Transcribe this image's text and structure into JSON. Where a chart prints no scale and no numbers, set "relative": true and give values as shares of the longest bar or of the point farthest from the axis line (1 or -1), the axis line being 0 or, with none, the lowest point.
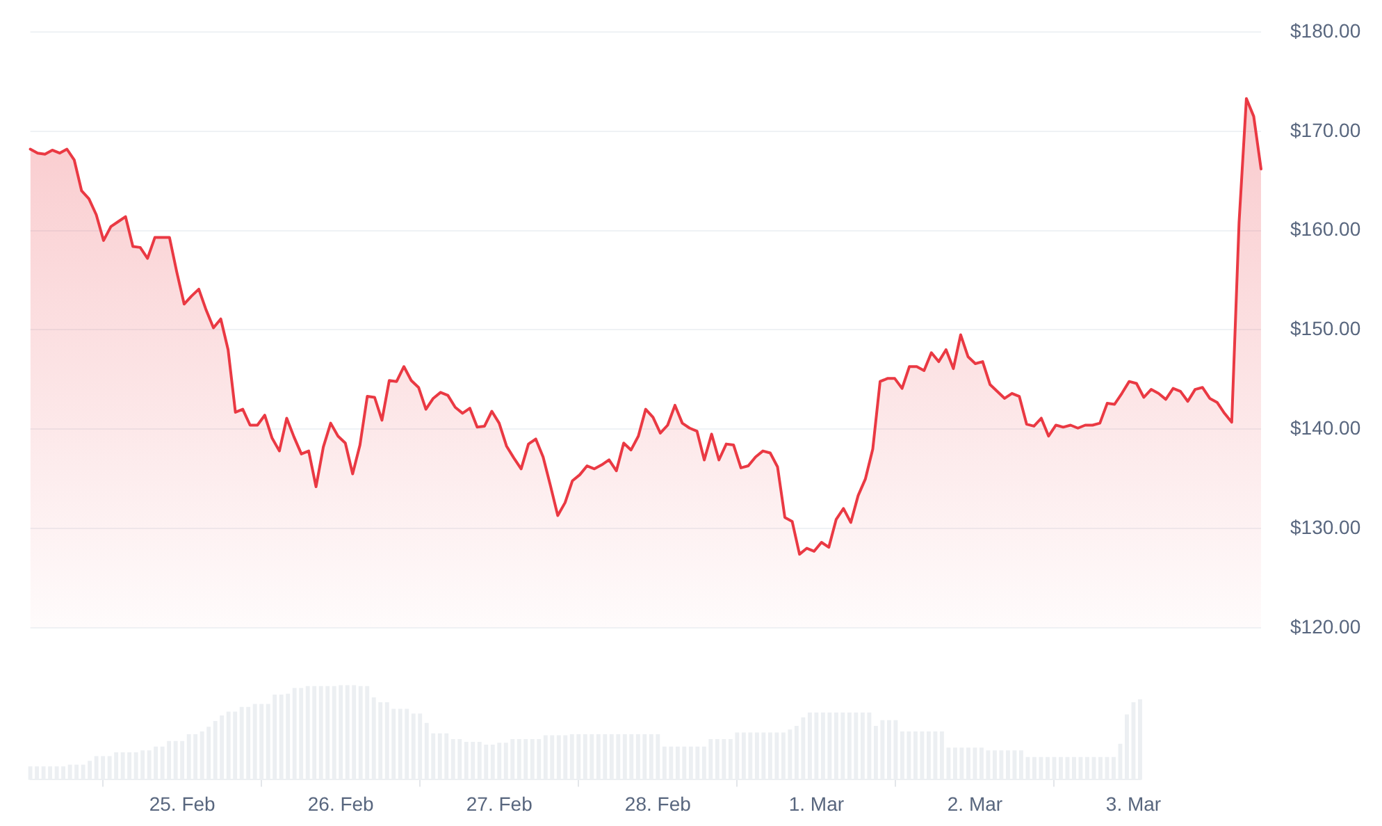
{
  "chart_data": [
    {
      "type": "area",
      "color": "#ea3943",
      "grid": "y",
      "tick_labels": "y",
      "ylim": [
        120,
        180
      ],
      "yticks": [
        {
          "value": 120,
          "label": "$120.00"
        },
        {
          "value": 130,
          "label": "$130.00"
        },
        {
          "value": 140,
          "label": "$140.00"
        },
        {
          "value": 150,
          "label": "$150.00"
        },
        {
          "value": 160,
          "label": "$160.00"
        },
        {
          "value": 170,
          "label": "$170.00"
        },
        {
          "value": 180,
          "label": "$180.00"
        }
      ],
      "categories": [
        null,
        null,
        null,
        null,
        null,
        null,
        null,
        null,
        null,
        null,
        null,
        null,
        null,
        null,
        null,
        null,
        null,
        null,
        null,
        null,
        null,
        null,
        null,
        null,
        null,
        null,
        null,
        null,
        null,
        null,
        null,
        null,
        null,
        null,
        null,
        null,
        null,
        null,
        null,
        null,
        null,
        null,
        null,
        null,
        null,
        null,
        null,
        null,
        null,
        null,
        null,
        null,
        null,
        null,
        null,
        null,
        null,
        null,
        null,
        null,
        null,
        null,
        null,
        null,
        null,
        null,
        null,
        null,
        null,
        null,
        null,
        null,
        null,
        null,
        null,
        null,
        null,
        null,
        null,
        null,
        null,
        null,
        null,
        null,
        null,
        null,
        null,
        null,
        null,
        null,
        null,
        null,
        null,
        null,
        null,
        null,
        null,
        null,
        null,
        null,
        null,
        null,
        null,
        null,
        null,
        null,
        null,
        null,
        null,
        null,
        null,
        null,
        null,
        null,
        null,
        null,
        null,
        null,
        null,
        null,
        null,
        null,
        null,
        null,
        null,
        null,
        null,
        null,
        null,
        null,
        null,
        null,
        null,
        null,
        null,
        null,
        null,
        null,
        null,
        null,
        null,
        null,
        null,
        null,
        null,
        null,
        null,
        null,
        null,
        null,
        null,
        null,
        null,
        null,
        null,
        null,
        null,
        null,
        null,
        null,
        null,
        null,
        null,
        null,
        null,
        null,
        null,
        null,
        null
      ],
      "values": [
        168.2,
        167.8,
        167.7,
        168.1,
        167.8,
        168.2,
        167.1,
        164,
        163.2,
        161.6,
        159,
        160.4,
        160.9,
        161.4,
        158.4,
        158.3,
        157.2,
        159.3,
        159.3,
        159.3,
        155.8,
        152.6,
        153.4,
        154.1,
        152,
        150.2,
        151.1,
        148,
        141.7,
        142,
        140.4,
        140.4,
        141.4,
        139.1,
        137.8,
        141.1,
        139.2,
        137.5,
        137.8,
        134.2,
        138.2,
        140.6,
        139.3,
        138.6,
        135.5,
        138.4,
        143.3,
        143.2,
        140.9,
        144.9,
        144.8,
        146.3,
        144.9,
        144.2,
        142,
        143.1,
        143.7,
        143.4,
        142.2,
        141.6,
        142.1,
        140.2,
        140.3,
        141.8,
        140.6,
        138.3,
        137.1,
        136,
        138.5,
        139,
        137.2,
        134.3,
        131.3,
        132.6,
        134.8,
        135.4,
        136.3,
        136,
        136.4,
        136.9,
        135.8,
        138.6,
        137.9,
        139.3,
        142,
        141.2,
        139.6,
        140.4,
        142.4,
        140.6,
        140.1,
        139.8,
        136.9,
        139.5,
        136.9,
        138.5,
        138.4,
        136.1,
        136.3,
        137.2,
        137.8,
        137.6,
        136.2,
        131.1,
        130.7,
        127.4,
        128,
        127.7,
        128.6,
        128.1,
        130.9,
        132,
        130.6,
        133.3,
        135,
        138,
        144.8,
        145.1,
        145.1,
        144.1,
        146.3,
        146.3,
        145.9,
        147.7,
        146.8,
        148,
        146.1,
        149.5,
        147.3,
        146.6,
        146.8,
        144.5,
        143.8,
        143.1,
        143.6,
        143.3,
        140.5,
        140.3,
        141.1,
        139.3,
        140.4,
        140.2,
        140.4,
        140.1,
        140.4,
        140.4,
        140.6,
        142.6,
        142.5,
        143.6,
        144.8,
        144.6,
        143.2,
        144,
        143.6,
        143,
        144.1,
        143.8,
        142.8,
        144,
        144.2,
        143.1,
        142.7,
        141.6,
        140.7,
        160.8,
        173.3,
        171.5,
        166.2
      ]
    },
    {
      "type": "bar",
      "color": "#eceff2",
      "relative": true,
      "tick_labels": "x",
      "categories": [
        null,
        null,
        null,
        null,
        null,
        null,
        null,
        null,
        null,
        null,
        null,
        null,
        null,
        null,
        null,
        null,
        null,
        null,
        null,
        null,
        null,
        null,
        null,
        "25. Feb",
        null,
        null,
        null,
        null,
        null,
        null,
        null,
        null,
        null,
        null,
        null,
        null,
        null,
        null,
        null,
        null,
        null,
        null,
        null,
        null,
        null,
        null,
        null,
        "26. Feb",
        null,
        null,
        null,
        null,
        null,
        null,
        null,
        null,
        null,
        null,
        null,
        null,
        null,
        null,
        null,
        null,
        null,
        null,
        null,
        null,
        null,
        null,
        null,
        "27. Feb",
        null,
        null,
        null,
        null,
        null,
        null,
        null,
        null,
        null,
        null,
        null,
        null,
        null,
        null,
        null,
        null,
        null,
        null,
        null,
        null,
        null,
        null,
        null,
        "28. Feb",
        null,
        null,
        null,
        null,
        null,
        null,
        null,
        null,
        null,
        null,
        null,
        null,
        null,
        null,
        null,
        null,
        null,
        null,
        null,
        null,
        null,
        null,
        null,
        "1. Mar",
        null,
        null,
        null,
        null,
        null,
        null,
        null,
        null,
        null,
        null,
        null,
        null,
        null,
        null,
        null,
        null,
        null,
        null,
        null,
        null,
        null,
        null,
        null,
        "2. Mar",
        null,
        null,
        null,
        null,
        null,
        null,
        null,
        null,
        null,
        null,
        null,
        null,
        null,
        null,
        null,
        null,
        null,
        null,
        null,
        null,
        null,
        null,
        null,
        "3. Mar",
        null
      ],
      "values": [
        0.14,
        0.14,
        0.14,
        0.14,
        0.14,
        0.14,
        0.16,
        0.16,
        0.16,
        0.2,
        0.25,
        0.25,
        0.25,
        0.29,
        0.29,
        0.29,
        0.29,
        0.31,
        0.31,
        0.35,
        0.35,
        0.41,
        0.41,
        0.41,
        0.48,
        0.48,
        0.51,
        0.56,
        0.62,
        0.68,
        0.72,
        0.72,
        0.77,
        0.77,
        0.8,
        0.8,
        0.8,
        0.9,
        0.9,
        0.91,
        0.97,
        0.97,
        0.99,
        0.99,
        0.99,
        0.99,
        0.99,
        1,
        1,
        1,
        0.99,
        0.99,
        0.87,
        0.82,
        0.82,
        0.75,
        0.75,
        0.75,
        0.7,
        0.7,
        0.6,
        0.49,
        0.49,
        0.49,
        0.43,
        0.43,
        0.4,
        0.4,
        0.4,
        0.37,
        0.37,
        0.39,
        0.39,
        0.43,
        0.43,
        0.43,
        0.43,
        0.43,
        0.47,
        0.47,
        0.47,
        0.47,
        0.48,
        0.48,
        0.48,
        0.48,
        0.48,
        0.48,
        0.48,
        0.48,
        0.48,
        0.48,
        0.48,
        0.48,
        0.48,
        0.48,
        0.35,
        0.35,
        0.35,
        0.35,
        0.35,
        0.35,
        0.35,
        0.43,
        0.43,
        0.43,
        0.43,
        0.5,
        0.5,
        0.5,
        0.5,
        0.5,
        0.5,
        0.5,
        0.5,
        0.53,
        0.57,
        0.66,
        0.71,
        0.71,
        0.71,
        0.71,
        0.71,
        0.71,
        0.71,
        0.71,
        0.71,
        0.71,
        0.57,
        0.63,
        0.63,
        0.63,
        0.51,
        0.51,
        0.51,
        0.51,
        0.51,
        0.51,
        0.51,
        0.34,
        0.34,
        0.34,
        0.34,
        0.34,
        0.34,
        0.31,
        0.31,
        0.31,
        0.31,
        0.31,
        0.31,
        0.24,
        0.24,
        0.24,
        0.24,
        0.24,
        0.24,
        0.24,
        0.24,
        0.24,
        0.24,
        0.24,
        0.24,
        0.24,
        0.24,
        0.38,
        0.69,
        0.82,
        0.85
      ]
    }
  ]
}
